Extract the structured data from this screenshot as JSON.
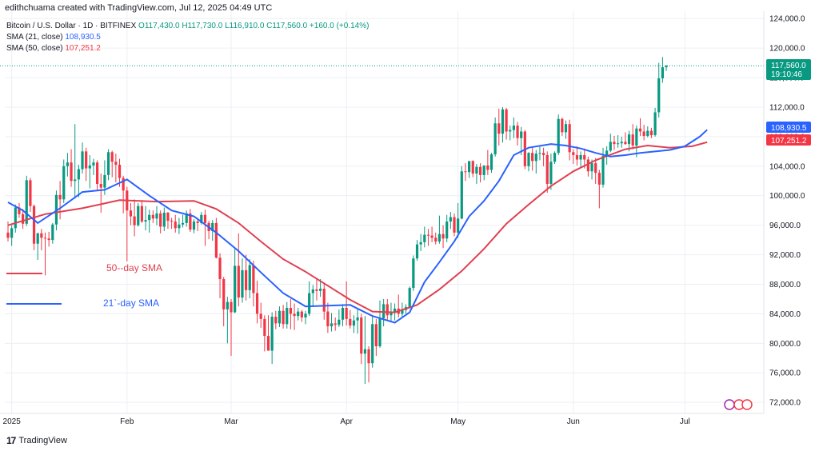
{
  "header": {
    "attribution": "edithchuama created with TradingView.com, Jul 12, 2025 04:49 UTC"
  },
  "legend": {
    "symbol": "Bitcoin / U.S. Dollar · 1D · BITFINEX",
    "ohlc": "O117,430.0  H117,730.0  L116,910.0  C117,560.0  +160.0 (+0.14%)",
    "sma21_label": "SMA (21, close)",
    "sma21_value": "108,930.5",
    "sma50_label": "SMA (50, close)",
    "sma50_value": "107,251.2"
  },
  "annotations": {
    "sma50": "50--day SMA",
    "sma21": "21`-day SMA"
  },
  "price_badges": {
    "last_price": "117,560.0",
    "countdown": "19:10:46",
    "sma21": "108,930.5",
    "sma50": "107,251.2"
  },
  "colors": {
    "up": "#089981",
    "down": "#f23645",
    "sma21": "#2962ff",
    "sma50": "#e04050",
    "grid": "#eceff3",
    "last_price_line": "#089981"
  },
  "footer": {
    "logo_text": "TradingView"
  },
  "chart_data": {
    "type": "candlestick",
    "title": "Bitcoin / U.S. Dollar · 1D · BITFINEX",
    "y_ticks": [
      72000,
      76000,
      80000,
      84000,
      88000,
      92000,
      96000,
      100000,
      104000,
      108000,
      112000,
      116000,
      120000,
      124000
    ],
    "y_tick_labels": [
      "72,000.0",
      "76,000.0",
      "80,000.0",
      "84,000.0",
      "88,000.0",
      "92,000.0",
      "96,000.0",
      "100,000.0",
      "104,000.0",
      "108,000.0",
      "112,000.0",
      "116,000.0",
      "120,000.0",
      "124,000.0"
    ],
    "ylim": [
      70500,
      125000
    ],
    "x_labels": [
      {
        "label": "2025",
        "index": 1
      },
      {
        "label": "Feb",
        "index": 32
      },
      {
        "label": "Mar",
        "index": 60
      },
      {
        "label": "Apr",
        "index": 91
      },
      {
        "label": "May",
        "index": 121
      },
      {
        "label": "Jun",
        "index": 152
      },
      {
        "label": "Jul",
        "index": 182
      }
    ],
    "start_date": "2024-12-31",
    "ohlc": [
      [
        95000,
        96500,
        93800,
        94300
      ],
      [
        94300,
        96000,
        93200,
        95600
      ],
      [
        95600,
        98800,
        95000,
        98400
      ],
      [
        98400,
        99000,
        97000,
        97500
      ],
      [
        97500,
        98200,
        95500,
        96200
      ],
      [
        96200,
        102700,
        95900,
        102100
      ],
      [
        102100,
        102400,
        97800,
        98600
      ],
      [
        98600,
        98800,
        92600,
        93500
      ],
      [
        93500,
        95000,
        91300,
        94900
      ],
      [
        94900,
        95500,
        92600,
        94300
      ],
      [
        94300,
        95000,
        89200,
        94200
      ],
      [
        94200,
        95100,
        93100,
        94000
      ],
      [
        94000,
        96300,
        93500,
        96100
      ],
      [
        96100,
        100700,
        95300,
        100100
      ],
      [
        100100,
        102000,
        96800,
        99500
      ],
      [
        99500,
        104900,
        99000,
        104000
      ],
      [
        104000,
        105800,
        102600,
        104500
      ],
      [
        104500,
        106300,
        101200,
        102000
      ],
      [
        102000,
        109700,
        99600,
        102200
      ],
      [
        102200,
        104200,
        99800,
        103600
      ],
      [
        103600,
        107200,
        103000,
        106000
      ],
      [
        106000,
        106500,
        102000,
        103700
      ],
      [
        103700,
        105500,
        101000,
        104100
      ],
      [
        104100,
        105000,
        102800,
        104500
      ],
      [
        104500,
        104800,
        100800,
        101600
      ],
      [
        101600,
        103000,
        97700,
        101100
      ],
      [
        101100,
        104800,
        100100,
        102800
      ],
      [
        102800,
        106300,
        102100,
        105900
      ],
      [
        105900,
        106100,
        102500,
        104600
      ],
      [
        104600,
        105700,
        101800,
        104200
      ],
      [
        104200,
        105000,
        101200,
        102400
      ],
      [
        102400,
        102700,
        97600,
        100700
      ],
      [
        100700,
        101200,
        91100,
        98000
      ],
      [
        98000,
        99000,
        96000,
        97200
      ],
      [
        97200,
        99500,
        94500,
        96000
      ],
      [
        96000,
        99000,
        95800,
        98600
      ],
      [
        98600,
        99400,
        96300,
        96500
      ],
      [
        96500,
        98600,
        95300,
        96700
      ],
      [
        96700,
        98100,
        95000,
        97400
      ],
      [
        97400,
        98000,
        96300,
        96900
      ],
      [
        96900,
        98600,
        96000,
        97600
      ],
      [
        97600,
        98000,
        94900,
        95800
      ],
      [
        95800,
        98400,
        95200,
        97700
      ],
      [
        97700,
        97800,
        95500,
        96600
      ],
      [
        96600,
        97000,
        95500,
        96500
      ],
      [
        96500,
        97400,
        95000,
        95600
      ],
      [
        95600,
        97000,
        94800,
        96100
      ],
      [
        96100,
        97400,
        95700,
        96300
      ],
      [
        96300,
        98000,
        95800,
        97600
      ],
      [
        97600,
        98200,
        95100,
        95400
      ],
      [
        95400,
        96800,
        94900,
        96500
      ],
      [
        96500,
        97000,
        95200,
        96300
      ],
      [
        96300,
        97800,
        96100,
        97400
      ],
      [
        97400,
        98100,
        93200,
        96300
      ],
      [
        96300,
        96600,
        94100,
        95200
      ],
      [
        95200,
        96700,
        93900,
        96300
      ],
      [
        96300,
        97000,
        91500,
        91600
      ],
      [
        91600,
        92200,
        86100,
        88700
      ],
      [
        88700,
        89000,
        82300,
        84600
      ],
      [
        84600,
        86300,
        80000,
        85600
      ],
      [
        85600,
        86000,
        78300,
        84200
      ],
      [
        84200,
        92800,
        84100,
        90500
      ],
      [
        90500,
        94900,
        85000,
        86200
      ],
      [
        86200,
        91500,
        85500,
        89900
      ],
      [
        89900,
        92000,
        85800,
        87200
      ],
      [
        87200,
        91400,
        86100,
        90600
      ],
      [
        90600,
        91200,
        85000,
        86800
      ],
      [
        86800,
        88500,
        82700,
        84000
      ],
      [
        84000,
        85500,
        82100,
        83300
      ],
      [
        83300,
        83800,
        78900,
        81000
      ],
      [
        81000,
        83800,
        79000,
        79000
      ],
      [
        79000,
        84200,
        77200,
        83600
      ],
      [
        83600,
        84400,
        81900,
        82700
      ],
      [
        82700,
        85000,
        82200,
        84400
      ],
      [
        84400,
        85200,
        82000,
        82600
      ],
      [
        82600,
        85600,
        82000,
        84800
      ],
      [
        84800,
        86000,
        81900,
        84000
      ],
      [
        84000,
        85400,
        81800,
        83700
      ],
      [
        83700,
        84800,
        83100,
        84300
      ],
      [
        84300,
        84500,
        82900,
        83500
      ],
      [
        83500,
        84400,
        82600,
        84000
      ],
      [
        84000,
        88400,
        83700,
        86800
      ],
      [
        86800,
        87900,
        85100,
        87300
      ],
      [
        87300,
        88700,
        85800,
        87100
      ],
      [
        87100,
        88700,
        86300,
        87400
      ],
      [
        87400,
        88200,
        83200,
        84300
      ],
      [
        84300,
        85500,
        81400,
        82300
      ],
      [
        82300,
        84100,
        81600,
        82700
      ],
      [
        82700,
        83500,
        81700,
        82500
      ],
      [
        82500,
        84600,
        82200,
        83200
      ],
      [
        83200,
        85300,
        82300,
        84800
      ],
      [
        84800,
        88400,
        82400,
        83300
      ],
      [
        83300,
        84500,
        82000,
        82400
      ],
      [
        82400,
        83800,
        81400,
        83100
      ],
      [
        83100,
        84600,
        81300,
        83500
      ],
      [
        83500,
        84000,
        77200,
        78600
      ],
      [
        78600,
        83700,
        74500,
        79200
      ],
      [
        79200,
        79600,
        74700,
        77300
      ],
      [
        77300,
        83600,
        76700,
        82600
      ],
      [
        82600,
        83300,
        78300,
        79600
      ],
      [
        79600,
        85800,
        79400,
        83400
      ],
      [
        83400,
        86000,
        82300,
        85300
      ],
      [
        85300,
        86000,
        83200,
        83800
      ],
      [
        83800,
        85500,
        83000,
        84200
      ],
      [
        84200,
        85400,
        83100,
        84700
      ],
      [
        84700,
        86600,
        83500,
        84000
      ],
      [
        84000,
        85500,
        83600,
        84500
      ],
      [
        84500,
        85300,
        84000,
        84900
      ],
      [
        84900,
        87700,
        84700,
        87500
      ],
      [
        87500,
        91900,
        87100,
        91500
      ],
      [
        91500,
        94000,
        91200,
        93400
      ],
      [
        93400,
        94800,
        92500,
        93700
      ],
      [
        93700,
        95800,
        93000,
        94700
      ],
      [
        94700,
        95500,
        93200,
        94600
      ],
      [
        94600,
        95800,
        93700,
        94300
      ],
      [
        94300,
        95000,
        93400,
        93800
      ],
      [
        93800,
        97300,
        93500,
        94800
      ],
      [
        94800,
        96000,
        92900,
        94200
      ],
      [
        94200,
        97400,
        93700,
        96500
      ],
      [
        96500,
        97800,
        95500,
        97100
      ],
      [
        97100,
        97600,
        94500,
        95000
      ],
      [
        95000,
        99000,
        94300,
        96900
      ],
      [
        96900,
        104000,
        96800,
        103300
      ],
      [
        103300,
        104400,
        102000,
        103200
      ],
      [
        103200,
        104500,
        102400,
        104700
      ],
      [
        104700,
        104800,
        102500,
        103000
      ],
      [
        103000,
        104300,
        101600,
        103900
      ],
      [
        103900,
        104400,
        101800,
        102800
      ],
      [
        102800,
        104100,
        102100,
        104100
      ],
      [
        104100,
        106200,
        102800,
        103500
      ],
      [
        103500,
        105800,
        103100,
        105600
      ],
      [
        105600,
        110600,
        105300,
        109800
      ],
      [
        109800,
        111800,
        106800,
        108400
      ],
      [
        108400,
        112000,
        107200,
        111700
      ],
      [
        111700,
        111900,
        107600,
        108700
      ],
      [
        108700,
        109500,
        107500,
        108900
      ],
      [
        108900,
        110600,
        107800,
        109500
      ],
      [
        109500,
        110000,
        106800,
        107800
      ],
      [
        107800,
        109300,
        105500,
        108700
      ],
      [
        108700,
        108900,
        103600,
        104000
      ],
      [
        104000,
        105900,
        103300,
        105800
      ],
      [
        105800,
        106600,
        103400,
        104700
      ],
      [
        104700,
        106200,
        103000,
        105700
      ],
      [
        105700,
        106800,
        104800,
        105800
      ],
      [
        105800,
        106500,
        104000,
        105500
      ],
      [
        105500,
        106000,
        100400,
        101600
      ],
      [
        101600,
        105700,
        100800,
        104600
      ],
      [
        104600,
        106000,
        104300,
        105800
      ],
      [
        105800,
        111000,
        105500,
        110400
      ],
      [
        110400,
        110600,
        108100,
        108600
      ],
      [
        108600,
        110200,
        107700,
        109700
      ],
      [
        109700,
        110300,
        104800,
        105900
      ],
      [
        105900,
        106300,
        104300,
        105500
      ],
      [
        105500,
        106700,
        104100,
        104900
      ],
      [
        104900,
        106000,
        103900,
        105500
      ],
      [
        105500,
        106400,
        103700,
        104900
      ],
      [
        104900,
        105300,
        102600,
        103300
      ],
      [
        103300,
        104900,
        102200,
        104400
      ],
      [
        104400,
        105100,
        101600,
        103100
      ],
      [
        103100,
        103500,
        98300,
        101500
      ],
      [
        101500,
        106500,
        101100,
        105400
      ],
      [
        105400,
        106700,
        104200,
        106100
      ],
      [
        106100,
        108400,
        105900,
        107300
      ],
      [
        107300,
        108100,
        106200,
        107000
      ],
      [
        107000,
        108200,
        106500,
        107100
      ],
      [
        107100,
        108000,
        106500,
        107300
      ],
      [
        107300,
        108600,
        106900,
        107000
      ],
      [
        107000,
        108800,
        106000,
        108300
      ],
      [
        108300,
        109700,
        106300,
        106800
      ],
      [
        106800,
        109500,
        105200,
        109100
      ],
      [
        109100,
        110500,
        108100,
        108700
      ],
      [
        108700,
        109600,
        107500,
        108100
      ],
      [
        108100,
        109400,
        107900,
        108800
      ],
      [
        108800,
        109200,
        107800,
        108200
      ],
      [
        108200,
        111900,
        108000,
        111300
      ],
      [
        111300,
        118000,
        110600,
        115900
      ],
      [
        115900,
        118800,
        115300,
        117400
      ],
      [
        117400,
        117700,
        116900,
        117600
      ]
    ],
    "sma21": [
      [
        0,
        99100
      ],
      [
        4,
        98000
      ],
      [
        8,
        96300
      ],
      [
        14,
        98300
      ],
      [
        20,
        100500
      ],
      [
        26,
        100800
      ],
      [
        32,
        102200
      ],
      [
        38,
        100000
      ],
      [
        44,
        98000
      ],
      [
        50,
        97200
      ],
      [
        56,
        95000
      ],
      [
        62,
        92500
      ],
      [
        68,
        89600
      ],
      [
        74,
        86800
      ],
      [
        80,
        85000
      ],
      [
        86,
        85100
      ],
      [
        92,
        85200
      ],
      [
        98,
        83700
      ],
      [
        104,
        82800
      ],
      [
        108,
        84200
      ],
      [
        112,
        88300
      ],
      [
        116,
        91000
      ],
      [
        120,
        93800
      ],
      [
        124,
        97200
      ],
      [
        128,
        99300
      ],
      [
        132,
        102000
      ],
      [
        136,
        105500
      ],
      [
        140,
        106500
      ],
      [
        146,
        107000
      ],
      [
        150,
        106800
      ],
      [
        154,
        106400
      ],
      [
        158,
        105800
      ],
      [
        162,
        105300
      ],
      [
        166,
        105500
      ],
      [
        170,
        105800
      ],
      [
        174,
        106000
      ],
      [
        178,
        106200
      ],
      [
        182,
        106700
      ],
      [
        186,
        108000
      ],
      [
        188,
        108930
      ]
    ],
    "sma50": [
      [
        0,
        96000
      ],
      [
        10,
        97500
      ],
      [
        20,
        98300
      ],
      [
        30,
        99400
      ],
      [
        40,
        99200
      ],
      [
        50,
        99300
      ],
      [
        56,
        98200
      ],
      [
        62,
        96300
      ],
      [
        68,
        93800
      ],
      [
        74,
        91400
      ],
      [
        80,
        89700
      ],
      [
        86,
        87800
      ],
      [
        92,
        85900
      ],
      [
        98,
        84300
      ],
      [
        104,
        84200
      ],
      [
        110,
        85200
      ],
      [
        116,
        87300
      ],
      [
        122,
        89800
      ],
      [
        128,
        92800
      ],
      [
        134,
        96200
      ],
      [
        140,
        98800
      ],
      [
        146,
        101300
      ],
      [
        152,
        103300
      ],
      [
        158,
        104800
      ],
      [
        166,
        106300
      ],
      [
        172,
        106800
      ],
      [
        178,
        106500
      ],
      [
        184,
        106700
      ],
      [
        188,
        107251
      ]
    ]
  }
}
